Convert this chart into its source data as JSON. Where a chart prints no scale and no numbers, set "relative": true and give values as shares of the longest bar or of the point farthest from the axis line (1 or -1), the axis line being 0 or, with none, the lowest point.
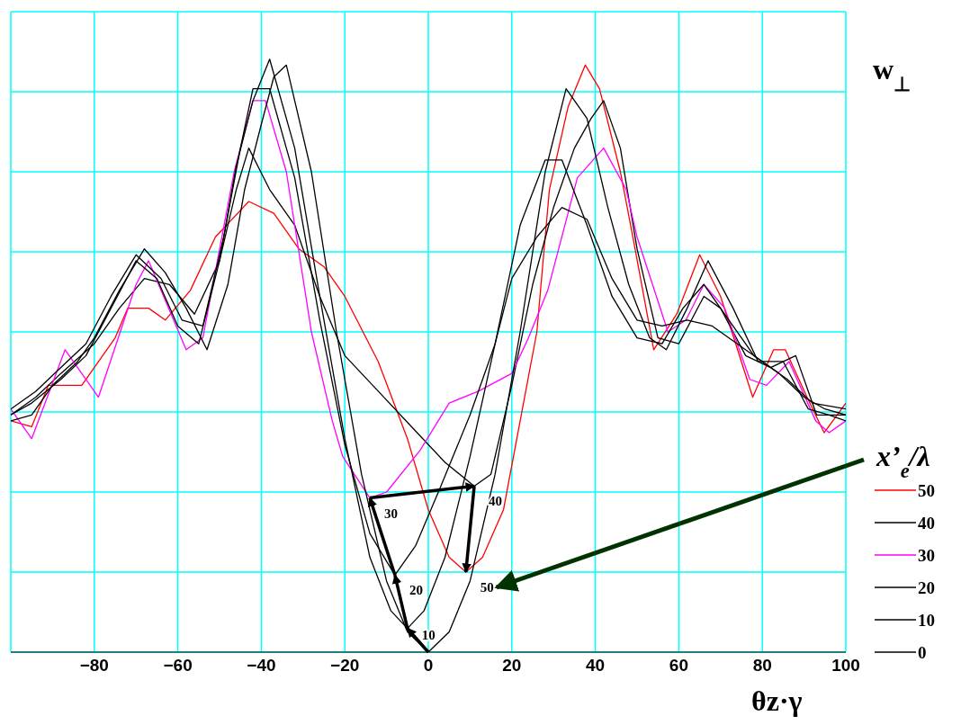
{
  "chart_data": {
    "type": "line",
    "relative": true,
    "xlabel": "θz·γ",
    "ylabel": "w$_{⊥}$",
    "legend_title": "x’$_{e}$/λ",
    "xlim": [
      -100,
      100
    ],
    "xticks": [
      -80,
      -60,
      -40,
      -20,
      0,
      20,
      40,
      60,
      80,
      100
    ],
    "grid": true,
    "legend": "right",
    "marker": "none",
    "line_style": "solid",
    "series": [
      {
        "name": "50",
        "color": "#ff0000",
        "x": [
          -100,
          -95,
          -91,
          -83,
          -75,
          -72,
          -67,
          -63,
          -57,
          -51,
          -43,
          -37,
          -31,
          -25,
          -20,
          -12,
          -5,
          0,
          5,
          9,
          13,
          18,
          22,
          26,
          29,
          33.5,
          37.6,
          41,
          46,
          49,
          54,
          59.5,
          65,
          70,
          77.7,
          82.7,
          85.5,
          90.7,
          94.8,
          100
        ],
        "values": [
          0.39,
          0.38,
          0.45,
          0.45,
          0.53,
          0.58,
          0.58,
          0.56,
          0.61,
          0.7,
          0.76,
          0.74,
          0.68,
          0.65,
          0.6,
          0.49,
          0.36,
          0.24,
          0.16,
          0.135,
          0.16,
          0.24,
          0.39,
          0.54,
          0.78,
          0.92,
          0.99,
          0.95,
          0.81,
          0.7,
          0.51,
          0.57,
          0.67,
          0.6,
          0.43,
          0.51,
          0.51,
          0.43,
          0.37,
          0.42
        ]
      },
      {
        "name": "40",
        "color": "#000000",
        "x": [
          -100,
          -94,
          -88,
          -80,
          -74,
          -68,
          -62,
          -56,
          -50,
          -46,
          -43,
          -38,
          -32,
          -26,
          -20,
          -12,
          -4,
          4,
          11,
          15,
          20,
          25,
          30,
          35,
          39,
          42,
          46,
          50,
          55,
          60,
          66,
          70,
          76,
          82,
          88,
          93,
          100
        ],
        "values": [
          0.4,
          0.43,
          0.47,
          0.52,
          0.58,
          0.63,
          0.62,
          0.57,
          0.66,
          0.78,
          0.85,
          0.78,
          0.72,
          0.6,
          0.5,
          0.44,
          0.38,
          0.32,
          0.28,
          0.3,
          0.45,
          0.62,
          0.75,
          0.85,
          0.9,
          0.93,
          0.85,
          0.68,
          0.53,
          0.52,
          0.6,
          0.58,
          0.5,
          0.48,
          0.5,
          0.4,
          0.4
        ]
      },
      {
        "name": "30",
        "color": "#ff00ff",
        "x": [
          -100,
          -95,
          -87,
          -79,
          -70,
          -67,
          -58,
          -54,
          -46.5,
          -42,
          -39,
          -34,
          -28,
          -23,
          -20.5,
          -14,
          -10,
          -2,
          5,
          12,
          20,
          24,
          28.6,
          35.7,
          42,
          47.4,
          50,
          57.4,
          61.7,
          66,
          71,
          77,
          81,
          86.4,
          92.8,
          96,
          100
        ],
        "values": [
          0.41,
          0.36,
          0.51,
          0.43,
          0.62,
          0.66,
          0.51,
          0.53,
          0.81,
          0.93,
          0.93,
          0.81,
          0.54,
          0.39,
          0.33,
          0.26,
          0.27,
          0.34,
          0.42,
          0.44,
          0.47,
          0.53,
          0.61,
          0.8,
          0.85,
          0.78,
          0.7,
          0.54,
          0.56,
          0.62,
          0.58,
          0.46,
          0.45,
          0.49,
          0.39,
          0.37,
          0.39
        ]
      },
      {
        "name": "20",
        "color": "#000000",
        "x": [
          -100,
          -94,
          -88,
          -82,
          -76,
          -70,
          -64,
          -59,
          -54,
          -49,
          -45,
          -42,
          -38,
          -32,
          -26,
          -20,
          -14,
          -8,
          -3,
          3,
          10,
          16,
          20,
          26,
          32,
          38,
          44,
          50,
          56,
          62,
          68,
          74,
          80,
          86,
          92,
          100
        ],
        "values": [
          0.41,
          0.44,
          0.48,
          0.52,
          0.6,
          0.67,
          0.63,
          0.56,
          0.55,
          0.7,
          0.85,
          0.95,
          0.95,
          0.8,
          0.56,
          0.35,
          0.2,
          0.13,
          0.18,
          0.28,
          0.4,
          0.52,
          0.63,
          0.7,
          0.75,
          0.73,
          0.63,
          0.56,
          0.55,
          0.56,
          0.55,
          0.52,
          0.49,
          0.46,
          0.42,
          0.41
        ]
      },
      {
        "name": "10",
        "color": "#000000",
        "x": [
          -100,
          -95,
          -88,
          -82,
          -76,
          -70,
          -65,
          -60,
          -55,
          -50,
          -46,
          -42,
          -38,
          -32,
          -26,
          -20,
          -14,
          -9,
          -5,
          -1,
          4,
          10,
          16,
          22,
          28,
          32,
          38,
          44,
          50,
          56,
          61,
          66,
          72,
          78,
          84,
          90,
          95,
          100
        ],
        "values": [
          0.4,
          0.42,
          0.46,
          0.5,
          0.58,
          0.66,
          0.63,
          0.55,
          0.52,
          0.66,
          0.82,
          0.93,
          1.0,
          0.85,
          0.6,
          0.36,
          0.16,
          0.07,
          0.04,
          0.07,
          0.16,
          0.33,
          0.52,
          0.72,
          0.83,
          0.83,
          0.72,
          0.6,
          0.53,
          0.52,
          0.58,
          0.62,
          0.56,
          0.5,
          0.47,
          0.43,
          0.41,
          0.4
        ]
      },
      {
        "name": "0",
        "color": "#000000",
        "x": [
          -100,
          -95,
          -90,
          -84,
          -80,
          -74,
          -68,
          -63,
          -58,
          -53,
          -48,
          -44,
          -40,
          -37,
          -34,
          -28,
          -22,
          -16,
          -10,
          -5,
          0,
          5,
          10,
          16,
          22,
          28,
          33,
          38,
          43,
          48,
          53,
          57,
          62,
          67,
          73,
          79,
          85,
          91,
          96,
          100
        ],
        "values": [
          0.39,
          0.4,
          0.45,
          0.49,
          0.53,
          0.61,
          0.68,
          0.64,
          0.58,
          0.51,
          0.62,
          0.78,
          0.89,
          0.97,
          0.99,
          0.81,
          0.54,
          0.3,
          0.12,
          0.034,
          0,
          0.034,
          0.12,
          0.3,
          0.54,
          0.81,
          0.95,
          0.9,
          0.75,
          0.62,
          0.53,
          0.51,
          0.58,
          0.66,
          0.58,
          0.49,
          0.49,
          0.41,
          0.4,
          0.39
        ]
      }
    ],
    "annotations": [
      {
        "text": "10",
        "x": -5,
        "y": 0.04
      },
      {
        "text": "20",
        "x": -8,
        "y": 0.13
      },
      {
        "text": "30",
        "x": -14,
        "y": 0.26
      },
      {
        "text": "40",
        "x": 11,
        "y": 0.28
      },
      {
        "text": "50",
        "x": 9,
        "y": 0.135
      }
    ]
  }
}
